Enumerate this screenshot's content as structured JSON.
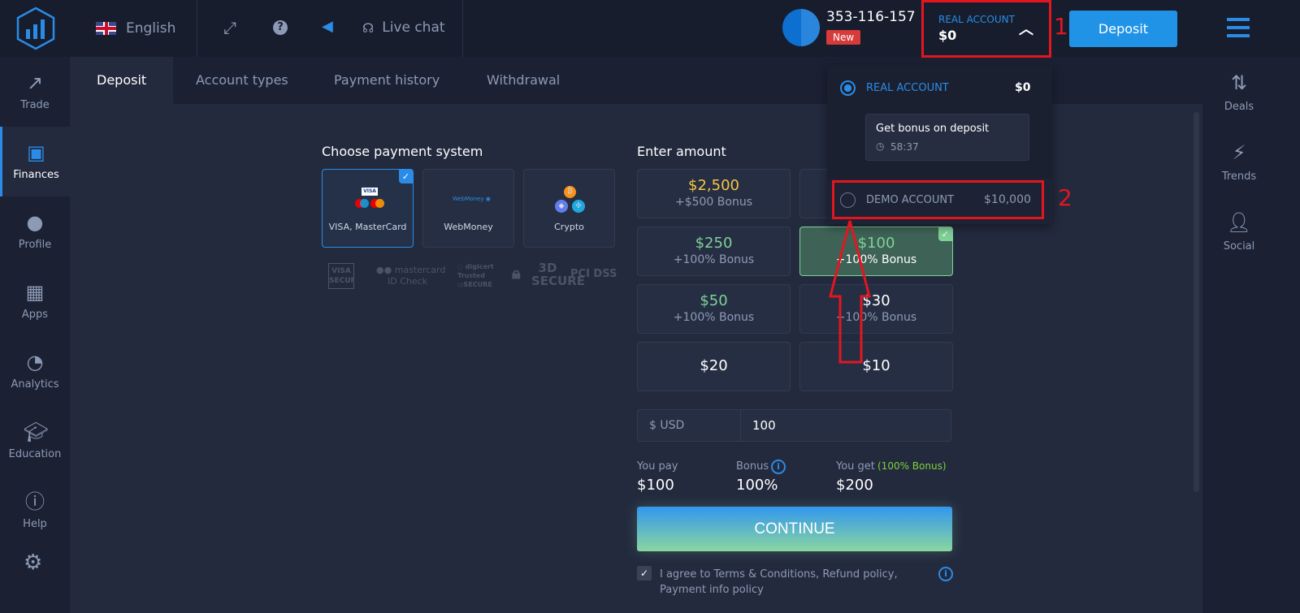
{
  "header": {
    "language": "English",
    "live_chat": "Live chat",
    "user_id": "353-116-157",
    "badge": "New",
    "account_label": "REAL ACCOUNT",
    "account_balance": "$0",
    "deposit_button": "Deposit"
  },
  "left_nav": [
    {
      "label": "Trade",
      "icon": "trend-up-icon"
    },
    {
      "label": "Finances",
      "icon": "banknote-icon"
    },
    {
      "label": "Profile",
      "icon": "user-icon"
    },
    {
      "label": "Apps",
      "icon": "grid-icon"
    },
    {
      "label": "Analytics",
      "icon": "pie-chart-icon"
    },
    {
      "label": "Education",
      "icon": "graduation-cap-icon"
    },
    {
      "label": "Help",
      "icon": "info-icon"
    }
  ],
  "right_nav": [
    {
      "label": "Deals",
      "icon": "sort-arrows-icon"
    },
    {
      "label": "Trends",
      "icon": "lightning-icon"
    },
    {
      "label": "Social",
      "icon": "add-user-icon"
    }
  ],
  "tabs": [
    "Deposit",
    "Account types",
    "Payment history",
    "Withdrawal"
  ],
  "payment": {
    "title": "Choose payment system",
    "methods": [
      "VISA, MasterCard",
      "WebMoney",
      "Crypto"
    ],
    "security_logos": [
      "VISA SECURE",
      "mastercard ID Check",
      "digicert Trusted SECURE",
      "3D SECURE",
      "PCI DSS"
    ]
  },
  "amount": {
    "title": "Enter amount",
    "options": [
      {
        "value": "$2,500",
        "bonus": "+$500 Bonus"
      },
      {
        "value": "$250",
        "bonus": "+100% Bonus"
      },
      {
        "value": "$100",
        "bonus": "+100% Bonus"
      },
      {
        "value": "$50",
        "bonus": "+100% Bonus"
      },
      {
        "value": "$30",
        "bonus": "+100% Bonus"
      },
      {
        "value": "$20"
      },
      {
        "value": "$10"
      }
    ],
    "currency": "$ USD",
    "input_value": "100",
    "you_pay_label": "You pay",
    "you_pay": "$100",
    "bonus_label": "Bonus",
    "bonus": "100%",
    "you_get_label": "You get",
    "you_get_note": "(100% Bonus)",
    "you_get": "$200",
    "continue": "CONTINUE",
    "agree": "I agree to Terms & Conditions, Refund policy, Payment info policy"
  },
  "dropdown": {
    "real_label": "REAL ACCOUNT",
    "real_balance": "$0",
    "bonus_title": "Get bonus on deposit",
    "timer": "58:37",
    "demo_label": "DEMO ACCOUNT",
    "demo_balance": "$10,000"
  },
  "annotations": [
    "1",
    "2"
  ],
  "colors": {
    "accent": "#2a8ce6",
    "annotation": "#e3161f",
    "gold": "#f5c542",
    "green": "#7fd198"
  }
}
